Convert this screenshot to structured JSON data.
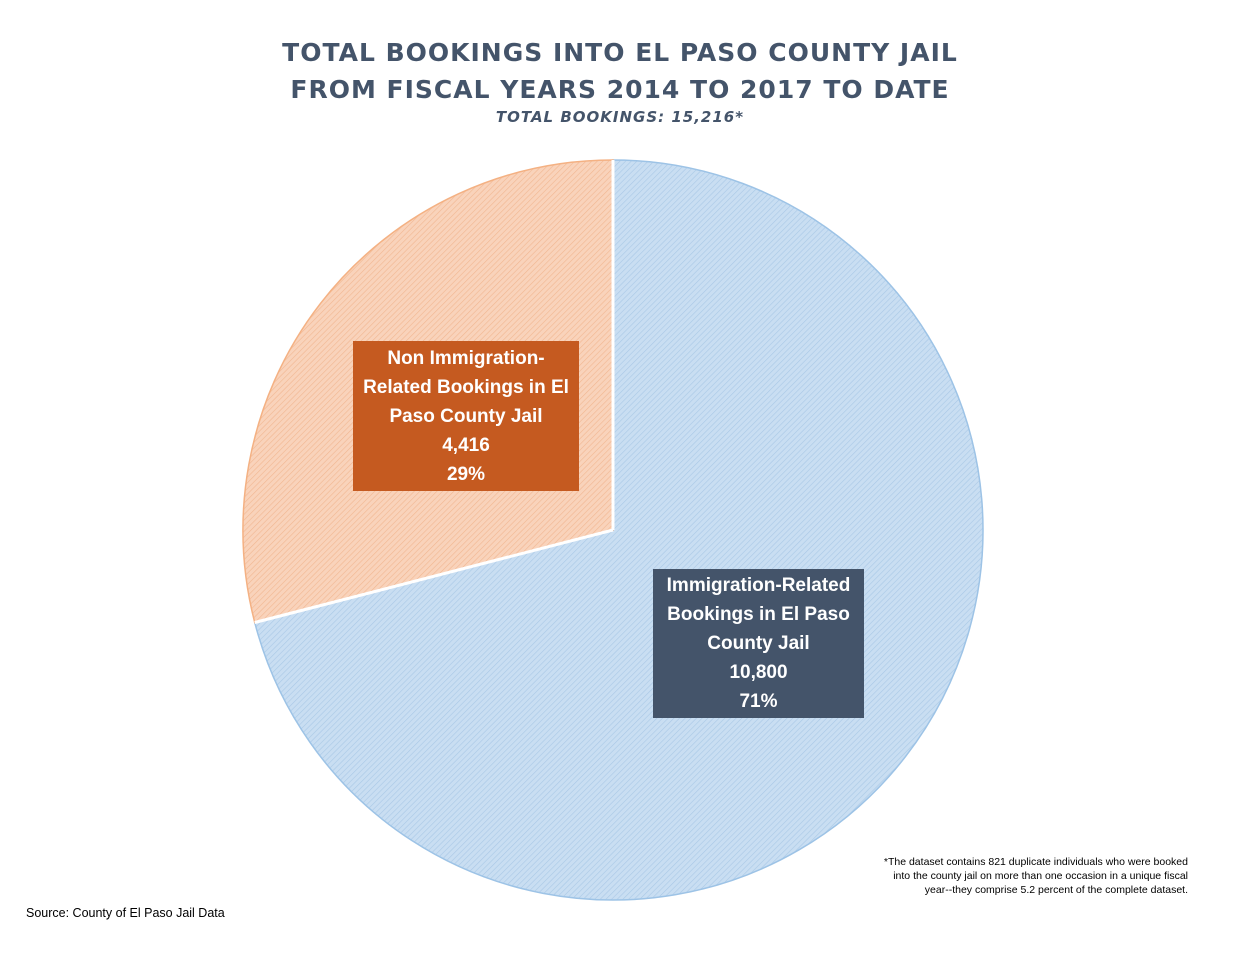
{
  "chart_data": {
    "type": "pie",
    "title_lines": [
      "TOTAL BOOKINGS INTO EL PASO COUNTY JAIL",
      "FROM FISCAL YEARS 2014 TO 2017 TO DATE"
    ],
    "subtitle": "TOTAL BOOKINGS: 15,216*",
    "slices": [
      {
        "label_lines": [
          "Immigration-Related",
          "Bookings in El Paso",
          "County Jail"
        ],
        "value": 10800,
        "value_label": "10,800",
        "percent_label": "71%",
        "color": "#bdd7ee",
        "stroke": "#9dc3e6",
        "label_color": "#44546a"
      },
      {
        "label_lines": [
          "Non Immigration-",
          "Related Bookings in El",
          "Paso County Jail"
        ],
        "value": 4416,
        "value_label": "4,416",
        "percent_label": "29%",
        "color": "#f8cbad",
        "stroke": "#f4b183",
        "label_color": "#c55a20"
      }
    ],
    "footnote_lines": [
      "*The dataset contains 821 duplicate individuals who were booked",
      "into the county jail on more than one occasion in a unique fiscal",
      "year--they comprise 5.2 percent of the complete dataset."
    ],
    "source": "Source: County of El Paso Jail Data"
  }
}
